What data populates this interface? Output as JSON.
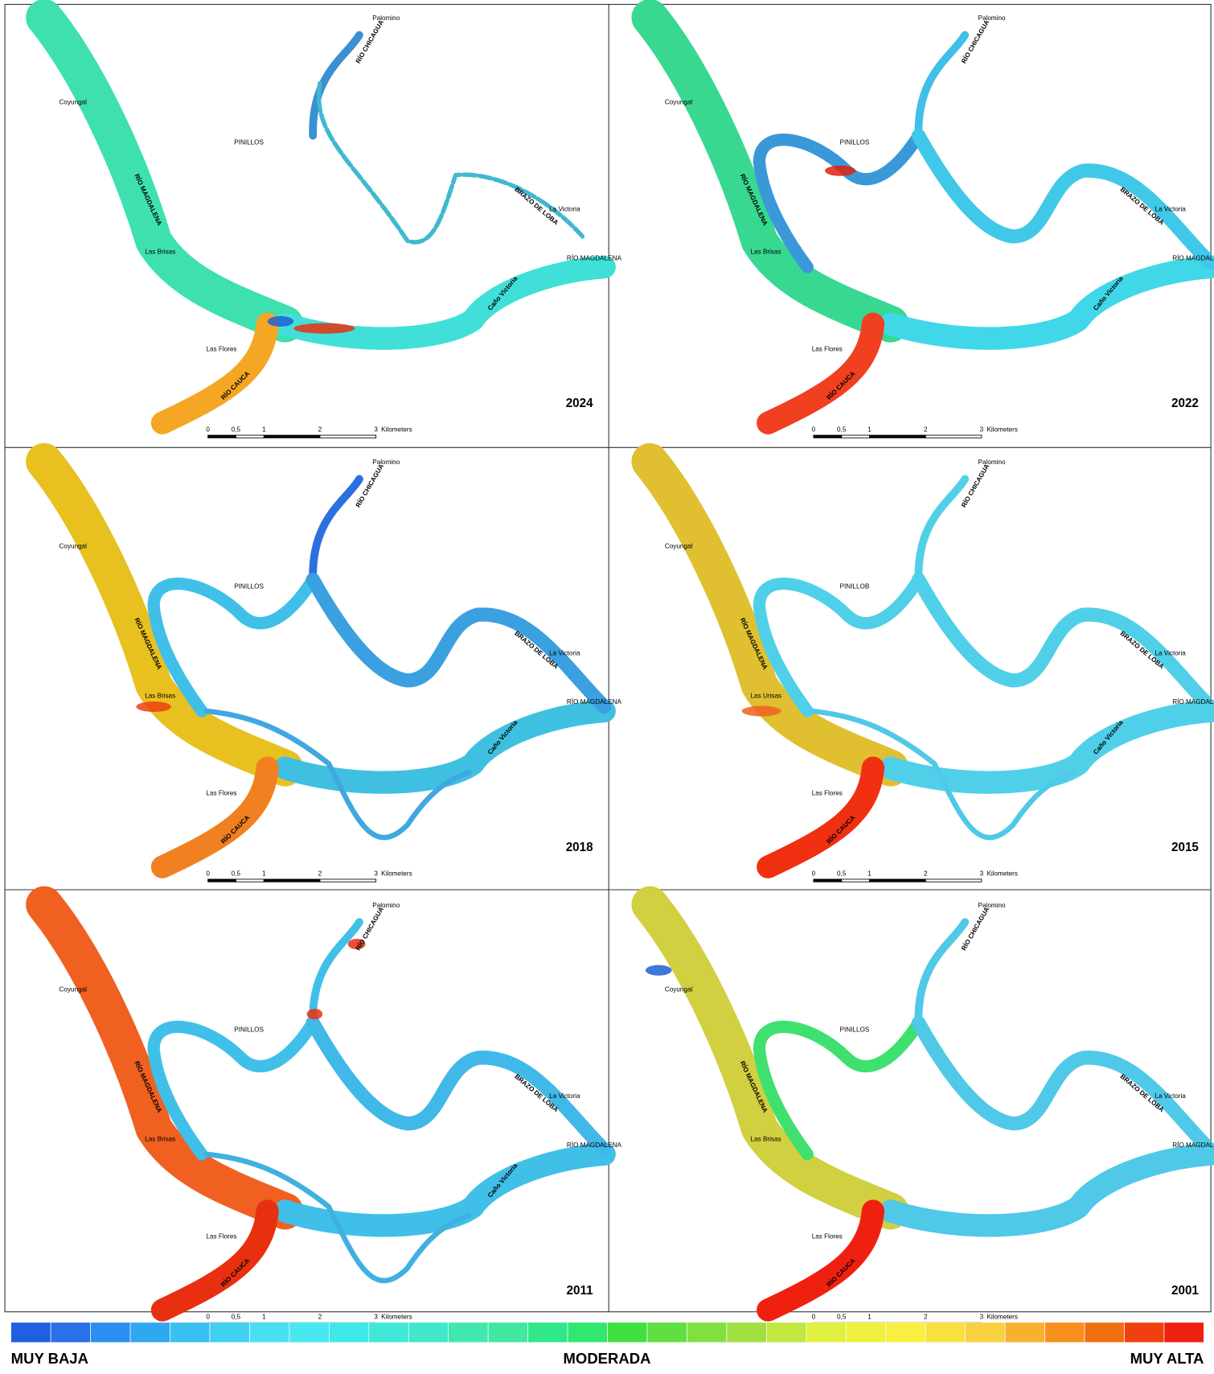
{
  "panels": [
    {
      "year": "2024",
      "labels": [
        "Palomino",
        "RÍO CHICAGUA",
        "Coyungal",
        "PINILLOS",
        "RÍO MAGDALENA",
        "BRAZO DE LOBA",
        "La Victoria",
        "Las Brisas",
        "RÍO MAGDALENA",
        "Caño Victoria",
        "Las Flores",
        "RÍO CAUCA"
      ]
    },
    {
      "year": "2022",
      "labels": [
        "Palomino",
        "RÍO CHICAGUA",
        "Coyungal",
        "PINILLOS",
        "RÍO MAGDALENA",
        "BRAZO DE LOBA",
        "La Victoria",
        "Las Brisas",
        "RÍO MAGDALENA",
        "Caño Victoria",
        "Las Flores",
        "RÍO CAUCA"
      ]
    },
    {
      "year": "2018",
      "labels": [
        "Palomino",
        "RÍO CHICAGUA",
        "Coyungal",
        "PINILLOS",
        "RÍO MAGDALENA",
        "BRAZO DE LOBA",
        "La Victoria",
        "Las Brisas",
        "RÍO MAGDALENA",
        "Caño Victoria",
        "Las Flores",
        "RÍO CAUCA"
      ]
    },
    {
      "year": "2015",
      "labels": [
        "Palomino",
        "RÍO CHICAGUA",
        "Coyungal",
        "PINILLOB",
        "RÍO MAGDALENA",
        "BRAZO DE LOBA",
        "La Victoria",
        "Las Urisas",
        "RÍO MAGDALENA",
        "Caño Victoria",
        "Las Flores",
        "RÍO CAUCA"
      ]
    },
    {
      "year": "2011",
      "labels": [
        "Palomino",
        "RÍO CHICAGUA",
        "Coyungal",
        "PINILLOS",
        "RÍO MAGDALENA",
        "BRAZO DE LOBA",
        "La Victoria",
        "Las Brisas",
        "RÍO MAGDALENA",
        "Caño Victoria",
        "Las Flores",
        "RÍO CAUCA"
      ]
    },
    {
      "year": "2001",
      "labels": [
        "Palomino",
        "RÍO CHICAGUA",
        "Coyungal",
        "PINILLOS",
        "RÍO MAGDALENA",
        "BRAZO DE LOBA",
        "La Victoria",
        "Las Brisas",
        "RÍO MAGDALENA",
        "Las Flores",
        "RÍO CAUCA"
      ]
    }
  ],
  "scale_bar": [
    "0",
    "0,5",
    "1",
    "2",
    "3",
    "Kilometers"
  ],
  "legend": {
    "labels": [
      "MUY BAJA",
      "MODERADA",
      "MUY ALTA"
    ],
    "colors": [
      "#1f5fe0",
      "#2a70e8",
      "#2a8ff0",
      "#30a8f0",
      "#38c0f0",
      "#40d0f0",
      "#48e0f0",
      "#48e8f0",
      "#40e8e8",
      "#40e8d8",
      "#40e8c8",
      "#40e8b0",
      "#40e8a0",
      "#30e888",
      "#30e870",
      "#40e040",
      "#60e040",
      "#80e040",
      "#a0e040",
      "#c0e840",
      "#e0f040",
      "#f0f040",
      "#f8f040",
      "#f8e040",
      "#f8d040",
      "#f8b030",
      "#f89020",
      "#f07010",
      "#f04010",
      "#f02010"
    ]
  }
}
